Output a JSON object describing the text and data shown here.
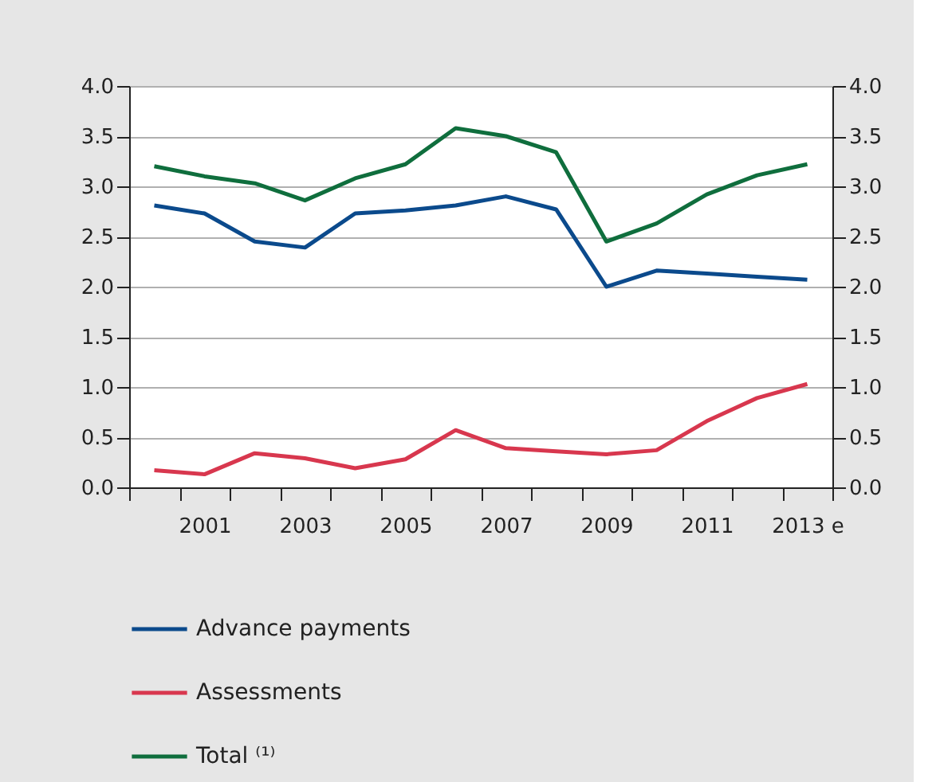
{
  "chart_data": {
    "type": "line",
    "categories": [
      null,
      "2001",
      null,
      "2003",
      null,
      "2005",
      null,
      "2007",
      null,
      "2009",
      null,
      "2011",
      null,
      "2013 e"
    ],
    "series": [
      {
        "name": "Advance payments",
        "color": "#0b4a8c",
        "values": [
          2.81,
          2.73,
          2.45,
          2.39,
          2.73,
          2.76,
          2.81,
          2.9,
          2.77,
          2.0,
          2.16,
          2.13,
          2.1,
          2.07
        ]
      },
      {
        "name": "Assessments",
        "color": "#d8374e",
        "values": [
          0.17,
          0.13,
          0.34,
          0.29,
          0.19,
          0.28,
          0.57,
          0.39,
          0.36,
          0.33,
          0.37,
          0.66,
          0.89,
          1.03
        ]
      },
      {
        "name": "Total ⁽¹⁾",
        "color": "#0f6e3d",
        "values": [
          3.2,
          3.1,
          3.03,
          2.86,
          3.08,
          3.22,
          3.58,
          3.5,
          3.34,
          2.45,
          2.63,
          2.92,
          3.11,
          3.22
        ]
      }
    ],
    "ylim": [
      0,
      4
    ],
    "yticks": [
      {
        "value": 0,
        "label": "0.0"
      },
      0.5,
      {
        "value": 1,
        "label": "1.0"
      },
      1.5,
      {
        "value": 2,
        "label": "2.0"
      },
      2.5,
      {
        "value": 3,
        "label": "3.0"
      },
      3.5,
      {
        "value": 4,
        "label": "4.0"
      }
    ],
    "y2lim": [
      0,
      4
    ],
    "y2ticks": [
      {
        "value": 0,
        "label": "0.0"
      },
      0.5,
      {
        "value": 1,
        "label": "1.0"
      },
      1.5,
      {
        "value": 2,
        "label": "2.0"
      },
      2.5,
      {
        "value": 3,
        "label": "3.0"
      },
      3.5,
      {
        "value": 4,
        "label": "4.0"
      }
    ],
    "grid": "y",
    "legend": "bottom left",
    "marker": "none",
    "line_style": "solid"
  }
}
